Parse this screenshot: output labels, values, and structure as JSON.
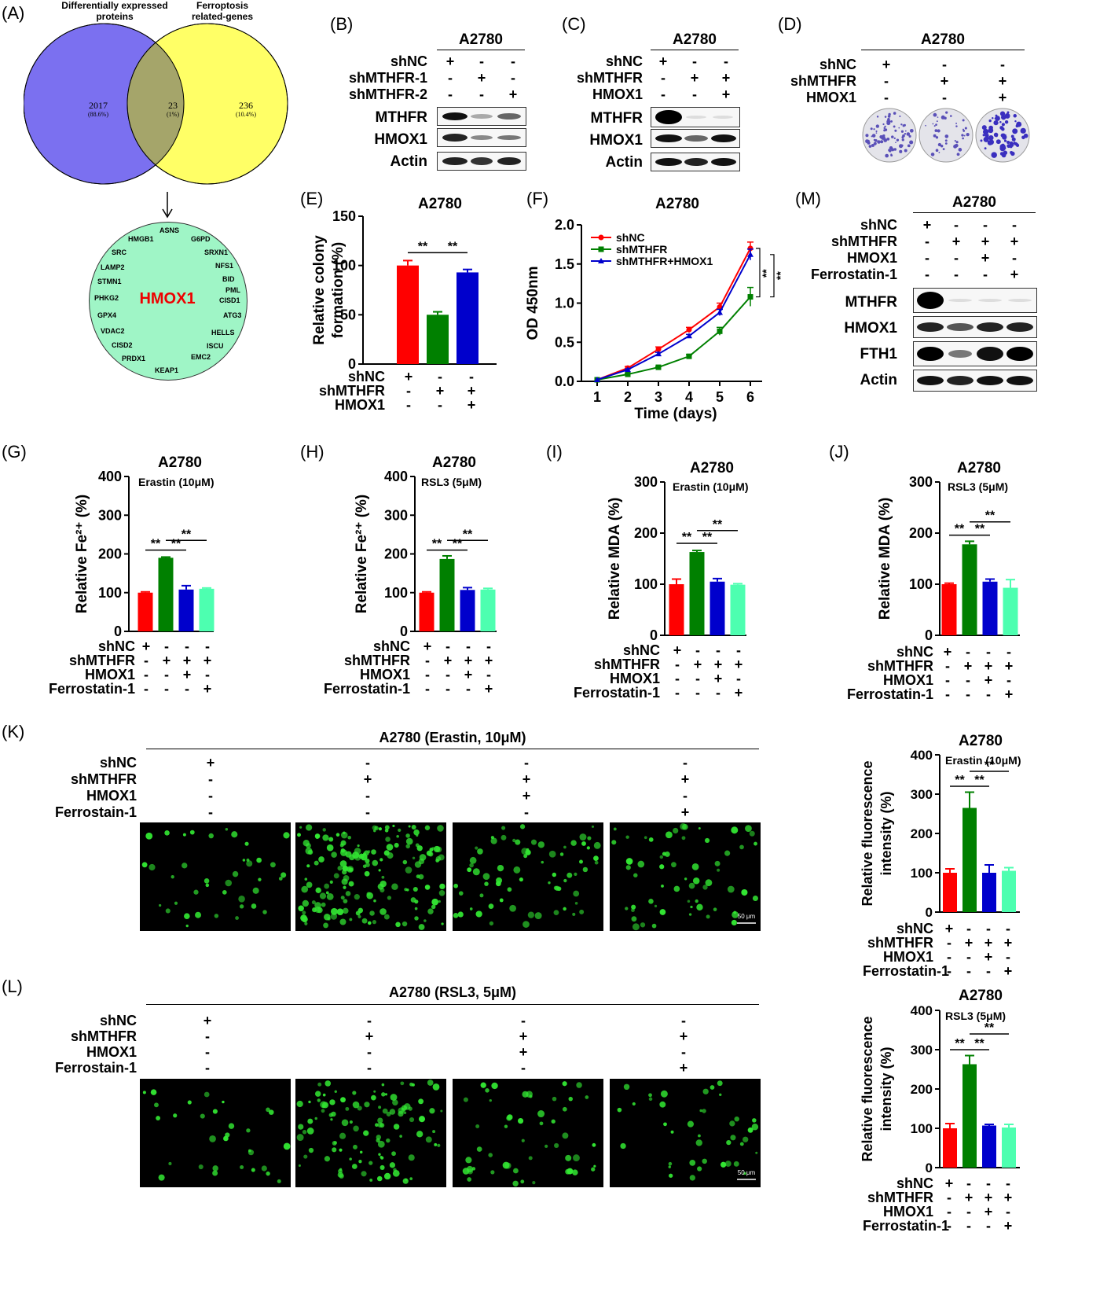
{
  "panels": {
    "A": {
      "label": "(A)",
      "venn_left_label": "Differentially expressed proteins",
      "venn_right_label": "Ferroptosis related-genes",
      "left_only": "2017",
      "left_only_pct": "(88.6%)",
      "overlap": "23",
      "overlap_pct": "(1%)",
      "right_only": "236",
      "right_only_pct": "(10.4%)",
      "highlight_gene": "HMOX1",
      "genes": [
        "ASNS",
        "HMGB1",
        "G6PD",
        "SRC",
        "SRXN1",
        "LAMP2",
        "NFS1",
        "BID",
        "STMN1",
        "PML",
        "PHKG2",
        "CISD1",
        "GPX4",
        "ATG3",
        "VDAC2",
        "HELLS",
        "ISCU",
        "CISD2",
        "EMC2",
        "PRDX1",
        "KEAP1"
      ]
    },
    "B": {
      "label": "(B)",
      "cell": "A2780",
      "conditions": [
        "shNC",
        "shMTHFR-1",
        "shMTHFR-2"
      ],
      "signs": [
        [
          "+",
          "-",
          "-"
        ],
        [
          "-",
          "+",
          "-"
        ],
        [
          "-",
          "-",
          "+"
        ]
      ],
      "blots": [
        "MTHFR",
        "HMOX1",
        "Actin"
      ]
    },
    "C": {
      "label": "(C)",
      "cell": "A2780",
      "conditions": [
        "shNC",
        "shMTHFR",
        "HMOX1"
      ],
      "signs": [
        [
          "+",
          "-",
          "-"
        ],
        [
          "-",
          "+",
          "+"
        ],
        [
          "-",
          "-",
          "+"
        ]
      ],
      "blots": [
        "MTHFR",
        "HMOX1",
        "Actin"
      ]
    },
    "D": {
      "label": "(D)",
      "cell": "A2780",
      "conditions": [
        "shNC",
        "shMTHFR",
        "HMOX1"
      ],
      "signs": [
        [
          "+",
          "-",
          "-"
        ],
        [
          "-",
          "+",
          "+"
        ],
        [
          "-",
          "-",
          "+"
        ]
      ]
    },
    "E": {
      "label": "(E)",
      "cell": "A2780",
      "conditions": [
        "shNC",
        "shMTHFR",
        "HMOX1"
      ],
      "signs": [
        [
          "+",
          "-",
          "-"
        ],
        [
          "-",
          "+",
          "+"
        ],
        [
          "-",
          "-",
          "+"
        ]
      ]
    },
    "F": {
      "label": "(F)"
    },
    "G": {
      "label": "(G)",
      "cell": "A2780",
      "treat": "Erastin (10μM)"
    },
    "H": {
      "label": "(H)",
      "cell": "A2780",
      "treat": "RSL3 (5μM)"
    },
    "I": {
      "label": "(I)",
      "cell": "A2780",
      "treat": "Erastin (10μM)"
    },
    "J": {
      "label": "(J)",
      "cell": "A2780",
      "treat": "RSL3 (5μM)"
    },
    "K": {
      "label": "(K)",
      "title": "A2780 (Erastin, 10μM)",
      "cell": "A2780",
      "treat": "Erastin (10μM)"
    },
    "L": {
      "label": "(L)",
      "title": "A2780 (RSL3, 5μM)",
      "cell": "A2780",
      "treat": "RSL3 (5μM)"
    },
    "M": {
      "label": "(M)",
      "cell": "A2780",
      "conditions": [
        "shNC",
        "shMTHFR",
        "HMOX1",
        "Ferrostatin-1"
      ],
      "signs": [
        [
          "+",
          "-",
          "-",
          "-"
        ],
        [
          "-",
          "+",
          "+",
          "+"
        ],
        [
          "-",
          "-",
          "+",
          "-"
        ],
        [
          "-",
          "-",
          "-",
          "+"
        ]
      ],
      "blots": [
        "MTHFR",
        "HMOX1",
        "FTH1",
        "Actin"
      ]
    }
  },
  "four_conditions": [
    "shNC",
    "shMTHFR",
    "HMOX1",
    "Ferrostatin-1"
  ],
  "four_conditions_kl": [
    "shNC",
    "shMTHFR",
    "HMOX1",
    "Ferrostain-1"
  ],
  "four_signs": [
    [
      "+",
      "-",
      "-",
      "-"
    ],
    [
      "-",
      "+",
      "+",
      "+"
    ],
    [
      "-",
      "-",
      "+",
      "-"
    ],
    [
      "-",
      "-",
      "-",
      "+"
    ]
  ],
  "sig": "**",
  "scale_bar": "50 μm",
  "colors": {
    "red": "#ff0000",
    "green": "#008000",
    "blue": "#0000cc",
    "teal": "#4dffb0",
    "venn_left": "#7b70f0",
    "venn_right": "#ffff66",
    "venn_overlap": "#a5a56a",
    "gene_circle": "#9ff5c6",
    "cell_green": "#32e632"
  },
  "chart_data": [
    {
      "id": "E",
      "type": "bar",
      "title": "A2780",
      "ylabel": "Relative colony formation (%)",
      "ylim": [
        0,
        150
      ],
      "yticks": [
        0,
        50,
        100,
        150
      ],
      "values": [
        100,
        50,
        93
      ],
      "errors": [
        5,
        3,
        3
      ]
    },
    {
      "id": "F",
      "type": "line",
      "title": "A2780",
      "xlabel": "Time (days)",
      "ylabel": "OD 450nm",
      "x": [
        1,
        2,
        3,
        4,
        5,
        6
      ],
      "ylim": [
        0,
        2.0
      ],
      "yticks": [
        "0.0",
        "0.5",
        "1.0",
        "1.5",
        "2.0"
      ],
      "series": [
        {
          "name": "shNC",
          "values": [
            0.02,
            0.17,
            0.41,
            0.66,
            0.95,
            1.7
          ]
        },
        {
          "name": "shMTHFR",
          "values": [
            0.02,
            0.09,
            0.18,
            0.32,
            0.64,
            1.08
          ]
        },
        {
          "name": "shMTHFR+HMOX1",
          "values": [
            0.02,
            0.15,
            0.35,
            0.58,
            0.88,
            1.62
          ]
        }
      ]
    },
    {
      "id": "G",
      "type": "bar",
      "title": "A2780",
      "ylabel": "Relative Fe²⁺ (%)",
      "ylim": [
        0,
        400
      ],
      "yticks": [
        0,
        100,
        200,
        300,
        400
      ],
      "values": [
        100,
        190,
        108,
        110
      ],
      "errors": [
        2,
        2,
        10,
        2
      ]
    },
    {
      "id": "H",
      "type": "bar",
      "title": "A2780",
      "ylabel": "Relative Fe²⁺ (%)",
      "ylim": [
        0,
        400
      ],
      "yticks": [
        0,
        100,
        200,
        300,
        400
      ],
      "values": [
        100,
        187,
        107,
        108
      ],
      "errors": [
        2,
        8,
        6,
        3
      ]
    },
    {
      "id": "I",
      "type": "bar",
      "title": "A2780",
      "ylabel": "Relative MDA (%)",
      "ylim": [
        0,
        300
      ],
      "yticks": [
        0,
        100,
        200,
        300
      ],
      "values": [
        100,
        163,
        105,
        99
      ],
      "errors": [
        10,
        3,
        6,
        2
      ]
    },
    {
      "id": "J",
      "type": "bar",
      "title": "A2780",
      "ylabel": "Relative MDA (%)",
      "ylim": [
        0,
        300
      ],
      "yticks": [
        0,
        100,
        200,
        300
      ],
      "values": [
        100,
        178,
        105,
        93
      ],
      "errors": [
        2,
        6,
        5,
        16
      ]
    },
    {
      "id": "K",
      "type": "bar",
      "title": "A2780",
      "ylabel": "Relative fluorescence intensity (%)",
      "ylim": [
        0,
        400
      ],
      "yticks": [
        0,
        100,
        200,
        300,
        400
      ],
      "values": [
        100,
        265,
        100,
        105
      ],
      "errors": [
        10,
        40,
        20,
        8
      ]
    },
    {
      "id": "L",
      "type": "bar",
      "title": "A2780",
      "ylabel": "Relative fluorescence intensity (%)",
      "ylim": [
        0,
        400
      ],
      "yticks": [
        0,
        100,
        200,
        300,
        400
      ],
      "values": [
        100,
        263,
        107,
        102
      ],
      "errors": [
        12,
        22,
        3,
        8
      ]
    }
  ]
}
